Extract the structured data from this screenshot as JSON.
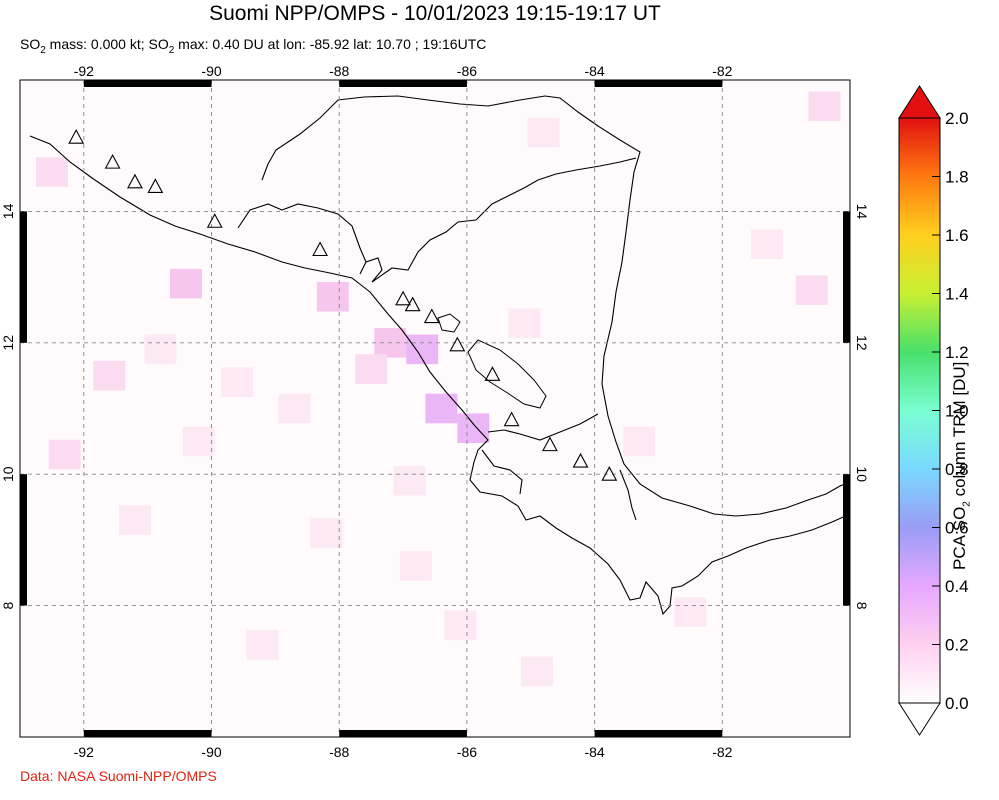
{
  "header": {
    "title": "Suomi NPP/OMPS - 10/01/2023 19:15-19:17 UT",
    "so2_mass_label": "SO",
    "so2_mass_text": " mass: 0.000 kt; SO",
    "so2_max_text": " max: 0.40 DU at lon: -85.92 lat: 10.70 ; 19:16UTC"
  },
  "map": {
    "lon_range": [
      -93.0,
      -80.0
    ],
    "lat_range": [
      6.0,
      16.0
    ],
    "lon_ticks": [
      "-92",
      "-90",
      "-88",
      "-86",
      "-84",
      "-82"
    ],
    "lon_tick_values": [
      -92,
      -90,
      -88,
      -86,
      -84,
      -82
    ],
    "lat_ticks": [
      "14",
      "12",
      "10",
      "8"
    ],
    "lat_tick_values": [
      14,
      12,
      10,
      8
    ],
    "grid": "dashed",
    "volcano_marker": "triangle",
    "volcanoes": [
      {
        "lon": -92.12,
        "lat": 15.13
      },
      {
        "lon": -91.55,
        "lat": 14.75
      },
      {
        "lon": -91.2,
        "lat": 14.45
      },
      {
        "lon": -90.88,
        "lat": 14.38
      },
      {
        "lon": -89.95,
        "lat": 13.85
      },
      {
        "lon": -88.3,
        "lat": 13.42
      },
      {
        "lon": -87.0,
        "lat": 12.67
      },
      {
        "lon": -86.85,
        "lat": 12.58
      },
      {
        "lon": -86.55,
        "lat": 12.4
      },
      {
        "lon": -86.15,
        "lat": 11.97
      },
      {
        "lon": -85.6,
        "lat": 11.52
      },
      {
        "lon": -85.3,
        "lat": 10.83
      },
      {
        "lon": -84.7,
        "lat": 10.45
      },
      {
        "lon": -84.22,
        "lat": 10.2
      },
      {
        "lon": -83.77,
        "lat": 10.0
      }
    ],
    "so2_pixels": [
      {
        "lon": -87.2,
        "lat": 12.0,
        "v": 0.3
      },
      {
        "lon": -86.7,
        "lat": 11.9,
        "v": 0.35
      },
      {
        "lon": -86.4,
        "lat": 11.0,
        "v": 0.4
      },
      {
        "lon": -85.9,
        "lat": 10.7,
        "v": 0.4
      },
      {
        "lon": -90.4,
        "lat": 12.9,
        "v": 0.3
      },
      {
        "lon": -88.1,
        "lat": 12.7,
        "v": 0.25
      },
      {
        "lon": -87.5,
        "lat": 11.6,
        "v": 0.2
      },
      {
        "lon": -92.3,
        "lat": 10.3,
        "v": 0.15
      },
      {
        "lon": -91.6,
        "lat": 11.5,
        "v": 0.15
      },
      {
        "lon": -90.8,
        "lat": 11.9,
        "v": 0.12
      },
      {
        "lon": -89.6,
        "lat": 11.4,
        "v": 0.12
      },
      {
        "lon": -88.7,
        "lat": 11.0,
        "v": 0.12
      },
      {
        "lon": -85.1,
        "lat": 12.3,
        "v": 0.1
      },
      {
        "lon": -83.3,
        "lat": 10.5,
        "v": 0.12
      },
      {
        "lon": -81.3,
        "lat": 13.5,
        "v": 0.1
      },
      {
        "lon": -80.6,
        "lat": 12.8,
        "v": 0.15
      },
      {
        "lon": -86.8,
        "lat": 8.6,
        "v": 0.12
      },
      {
        "lon": -86.1,
        "lat": 7.7,
        "v": 0.1
      },
      {
        "lon": -84.9,
        "lat": 7.0,
        "v": 0.1
      },
      {
        "lon": -89.2,
        "lat": 7.4,
        "v": 0.1
      },
      {
        "lon": -88.2,
        "lat": 9.1,
        "v": 0.1
      },
      {
        "lon": -82.5,
        "lat": 7.9,
        "v": 0.1
      },
      {
        "lon": -92.5,
        "lat": 14.6,
        "v": 0.15
      },
      {
        "lon": -84.8,
        "lat": 15.2,
        "v": 0.1
      },
      {
        "lon": -80.4,
        "lat": 15.6,
        "v": 0.15
      },
      {
        "lon": -91.2,
        "lat": 9.3,
        "v": 0.1
      },
      {
        "lon": -86.9,
        "lat": 9.9,
        "v": 0.12
      },
      {
        "lon": -90.2,
        "lat": 10.5,
        "v": 0.1
      }
    ]
  },
  "colorbar": {
    "label_prefix": "PCA SO",
    "label_suffix": " column TRM [DU]",
    "ticks": [
      "2.0",
      "1.8",
      "1.6",
      "1.4",
      "1.2",
      "1.0",
      "0.8",
      "0.6",
      "0.4",
      "0.2",
      "0.0"
    ],
    "range": [
      0.0,
      2.0
    ],
    "colors": [
      "#ffffff",
      "#ffd0f0",
      "#e6a8ff",
      "#9a9cf5",
      "#7ad9ff",
      "#7affd2",
      "#48e06a",
      "#c8f032",
      "#ffcf1e",
      "#ff7a10",
      "#e21010"
    ]
  },
  "credit": "Data: NASA Suomi-NPP/OMPS"
}
